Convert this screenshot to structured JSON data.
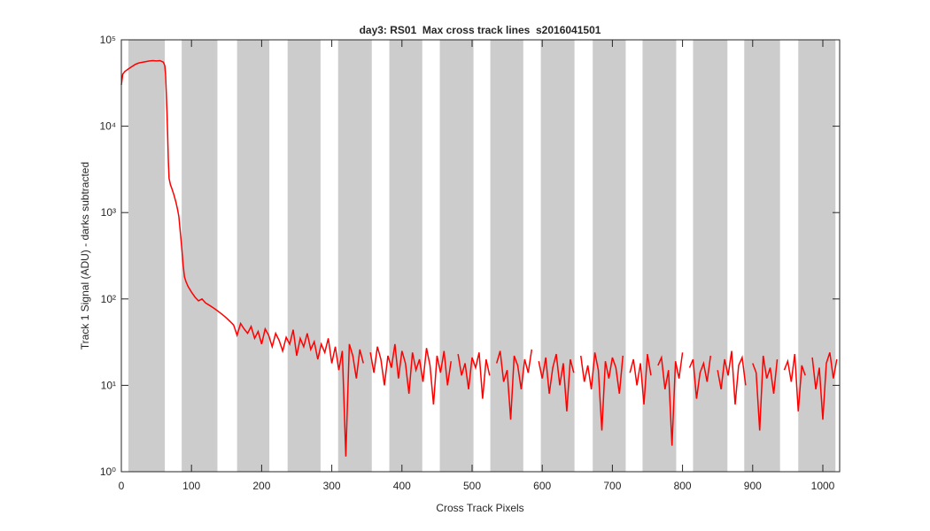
{
  "chart_data": {
    "type": "line",
    "title": "day3: RS01  Max cross track lines  s2016041501",
    "xlabel": "Cross Track Pixels",
    "ylabel": "Track 1 Signal (ADU) - darks subtracted",
    "xlim": [
      0,
      1024
    ],
    "xticks": [
      0,
      100,
      200,
      300,
      400,
      500,
      600,
      700,
      800,
      900,
      1000
    ],
    "ylim": [
      1,
      100000
    ],
    "log_y": true,
    "yticks": [
      {
        "value": 1,
        "label": "10⁰"
      },
      {
        "value": 10,
        "label": "10¹"
      },
      {
        "value": 100,
        "label": "10²"
      },
      {
        "value": 1000,
        "label": "10³"
      },
      {
        "value": 10000,
        "label": "10⁴"
      },
      {
        "value": 100000,
        "label": "10⁵"
      }
    ],
    "band_color": "#cccccc",
    "shaded_bands": [
      [
        10,
        62
      ],
      [
        86,
        137
      ],
      [
        165,
        211
      ],
      [
        237,
        284
      ],
      [
        309,
        357
      ],
      [
        382,
        429
      ],
      [
        454,
        502
      ],
      [
        526,
        573
      ],
      [
        598,
        646
      ],
      [
        672,
        719
      ],
      [
        743,
        791
      ],
      [
        815,
        864
      ],
      [
        888,
        939
      ],
      [
        965,
        1018
      ]
    ],
    "series": [
      {
        "color": "#ff0000",
        "x": [
          0,
          2,
          5,
          10,
          15,
          20,
          25,
          30,
          35,
          40,
          45,
          50,
          55,
          58,
          60,
          62,
          63,
          64,
          65,
          66,
          67,
          68,
          70,
          72,
          75,
          78,
          80,
          82,
          84,
          86,
          88,
          90,
          92,
          95,
          100,
          105,
          110,
          115,
          120,
          125,
          130,
          135,
          140,
          145,
          150,
          155,
          160,
          165,
          170,
          175,
          180,
          185,
          190,
          195,
          200,
          205,
          210,
          215,
          220,
          225,
          230,
          235,
          240,
          245,
          250,
          255,
          260,
          265,
          270,
          275,
          280,
          285,
          290,
          295,
          300,
          305,
          310,
          315,
          320,
          325,
          330,
          335,
          340,
          345,
          350,
          355,
          360,
          365,
          370,
          375,
          380,
          385,
          390,
          395,
          400,
          405,
          410,
          415,
          420,
          425,
          430,
          435,
          440,
          445,
          450,
          455,
          460,
          465,
          470,
          475,
          480,
          485,
          490,
          495,
          500,
          505,
          510,
          515,
          520,
          525,
          530,
          535,
          540,
          545,
          550,
          555,
          560,
          565,
          570,
          575,
          580,
          585,
          590,
          595,
          600,
          605,
          610,
          615,
          620,
          625,
          630,
          635,
          640,
          645,
          650,
          655,
          660,
          665,
          670,
          675,
          680,
          685,
          690,
          695,
          700,
          705,
          710,
          715,
          720,
          725,
          730,
          735,
          740,
          745,
          750,
          755,
          760,
          765,
          770,
          775,
          780,
          785,
          790,
          795,
          800,
          805,
          810,
          815,
          820,
          825,
          830,
          835,
          840,
          845,
          850,
          855,
          860,
          865,
          870,
          875,
          880,
          885,
          890,
          895,
          900,
          905,
          910,
          915,
          920,
          925,
          930,
          935,
          940,
          945,
          950,
          955,
          960,
          965,
          970,
          975,
          980,
          985,
          990,
          995,
          1000,
          1005,
          1010,
          1015,
          1020
        ],
        "values": [
          30000,
          40000,
          43000,
          46000,
          49000,
          52000,
          54000,
          55000,
          56000,
          57000,
          57500,
          57000,
          57500,
          56000,
          55000,
          50000,
          40000,
          25000,
          15000,
          8000,
          4000,
          2500,
          2100,
          1900,
          1600,
          1300,
          1100,
          900,
          600,
          400,
          250,
          180,
          160,
          140,
          120,
          105,
          95,
          100,
          90,
          85,
          80,
          75,
          70,
          65,
          60,
          55,
          50,
          38,
          52,
          45,
          40,
          48,
          35,
          42,
          30,
          45,
          38,
          28,
          40,
          33,
          25,
          36,
          30,
          44,
          22,
          35,
          28,
          40,
          26,
          32,
          20,
          30,
          24,
          35,
          18,
          28,
          15,
          25,
          1.5,
          30,
          22,
          12,
          26,
          18,
          null,
          24,
          14,
          28,
          20,
          10,
          22,
          16,
          30,
          12,
          25,
          18,
          8,
          24,
          15,
          20,
          11,
          27,
          17,
          6,
          22,
          14,
          25,
          10,
          19,
          null,
          23,
          13,
          18,
          9,
          21,
          16,
          24,
          7,
          20,
          13,
          null,
          18,
          25,
          11,
          15,
          4,
          22,
          17,
          9,
          20,
          14,
          26,
          null,
          19,
          12,
          21,
          8,
          16,
          23,
          10,
          18,
          5,
          20,
          14,
          null,
          22,
          11,
          17,
          9,
          24,
          15,
          3,
          19,
          12,
          21,
          16,
          8,
          22,
          null,
          14,
          20,
          10,
          18,
          6,
          23,
          13,
          null,
          17,
          21,
          9,
          15,
          2,
          19,
          12,
          24,
          null,
          16,
          20,
          7,
          14,
          18,
          11,
          22,
          null,
          15,
          9,
          20,
          13,
          25,
          6,
          17,
          21,
          10,
          null,
          18,
          14,
          3,
          22,
          12,
          16,
          8,
          20,
          null,
          15,
          19,
          11,
          23,
          5,
          17,
          13,
          null,
          21,
          9,
          16,
          4,
          18,
          24,
          12,
          20
        ]
      }
    ]
  }
}
